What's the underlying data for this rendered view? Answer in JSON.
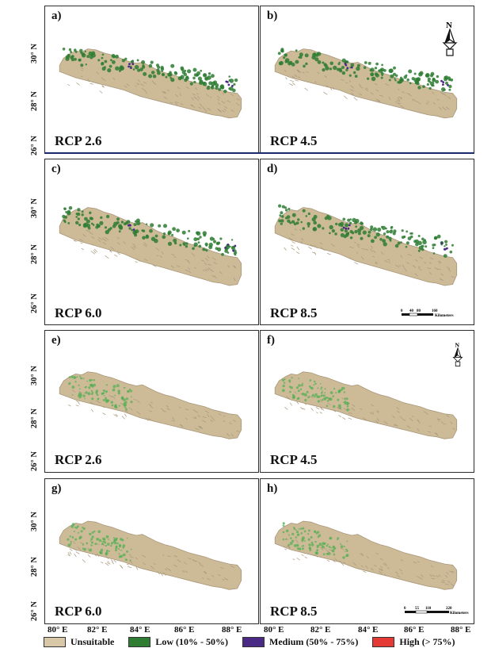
{
  "panels": [
    {
      "letter": "a)",
      "scenario": "RCP 2.6",
      "style": "dense"
    },
    {
      "letter": "b)",
      "scenario": "RCP 4.5",
      "style": "dense"
    },
    {
      "letter": "c)",
      "scenario": "RCP 6.0",
      "style": "dense"
    },
    {
      "letter": "d)",
      "scenario": "RCP 8.5",
      "style": "dense"
    },
    {
      "letter": "e)",
      "scenario": "RCP 2.6",
      "style": "sparse"
    },
    {
      "letter": "f)",
      "scenario": "RCP 4.5",
      "style": "sparse"
    },
    {
      "letter": "g)",
      "scenario": "RCP 6.0",
      "style": "sparse"
    },
    {
      "letter": "h)",
      "scenario": "RCP 8.5",
      "style": "sparse"
    }
  ],
  "latitude_labels": [
    "30° N",
    "28° N",
    "26° N"
  ],
  "longitude_labels": [
    "80° E",
    "82° E",
    "84° E",
    "86° E",
    "88° E",
    "80° E",
    "82° E",
    "84° E",
    "86° E",
    "88° E"
  ],
  "scalebars": [
    {
      "ticks": [
        "0",
        "40",
        "80",
        "160"
      ],
      "unit": "Kilometers"
    },
    {
      "ticks": [
        "0",
        "55",
        "110",
        "220"
      ],
      "unit": "Kilometers"
    }
  ],
  "north_label": "N",
  "legend": [
    {
      "label": "Unsuitable",
      "color": "#d8c8a8"
    },
    {
      "label": "Low (10% - 50%)",
      "color": "#2e7d32"
    },
    {
      "label": "Medium (50% - 75%)",
      "color": "#4b2a86"
    },
    {
      "label": "High (> 75%)",
      "color": "#e53935"
    }
  ],
  "colors": {
    "terrain": "#cdbb98",
    "terrain_shade": "#a8977a",
    "low": "#2e7d32",
    "low_light": "#4caf50",
    "medium": "#4b2a86",
    "frame": "#2d2d2d",
    "divider": "#1b2a6b"
  }
}
